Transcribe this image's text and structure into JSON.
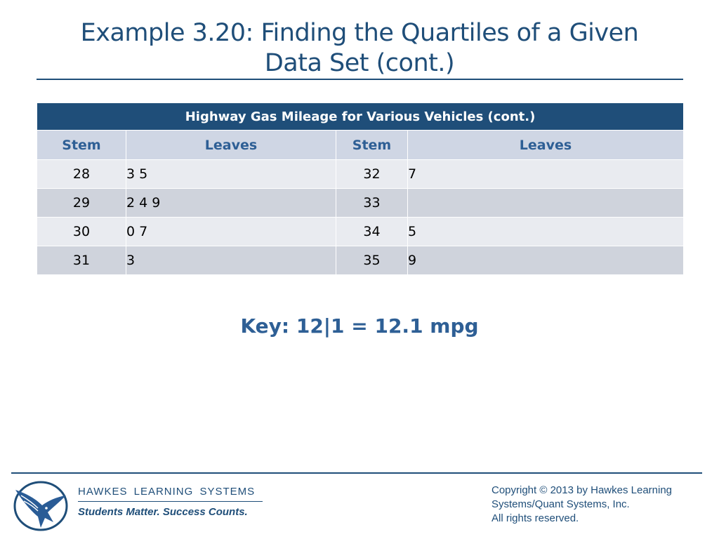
{
  "slide": {
    "title_line1": "Example 3.20: Finding the Quartiles of a Given",
    "title_line2": "Data Set (cont.)"
  },
  "table": {
    "caption": "Highway Gas Mileage for Various Vehicles (cont.)",
    "headers": [
      "Stem",
      "Leaves",
      "Stem",
      "Leaves"
    ],
    "rows": [
      [
        "28",
        "3 5",
        "32",
        "7"
      ],
      [
        "29",
        "2 4 9",
        "33",
        ""
      ],
      [
        "30",
        "0 7",
        "34",
        "5"
      ],
      [
        "31",
        "3",
        "35",
        "9"
      ]
    ]
  },
  "key": "Key: 12|1 = 12.1 mpg",
  "footer": {
    "brand": "HAWKES LEARNING SYSTEMS",
    "tagline": "Students Matter. Success Counts.",
    "copyright_lines": [
      "Copyright © 2013 by Hawkes Learning",
      "Systems/Quant Systems, Inc.",
      "All rights reserved."
    ]
  },
  "colors": {
    "title": "#1f4e79",
    "table_caption_bg": "#1f4e79",
    "header_text": "#2e5f95",
    "header_bg": "#cfd6e4",
    "row_light": "#e9ebf0",
    "row_dark": "#cfd3dc"
  },
  "icons": {
    "logo": "eagle-logo-icon"
  }
}
